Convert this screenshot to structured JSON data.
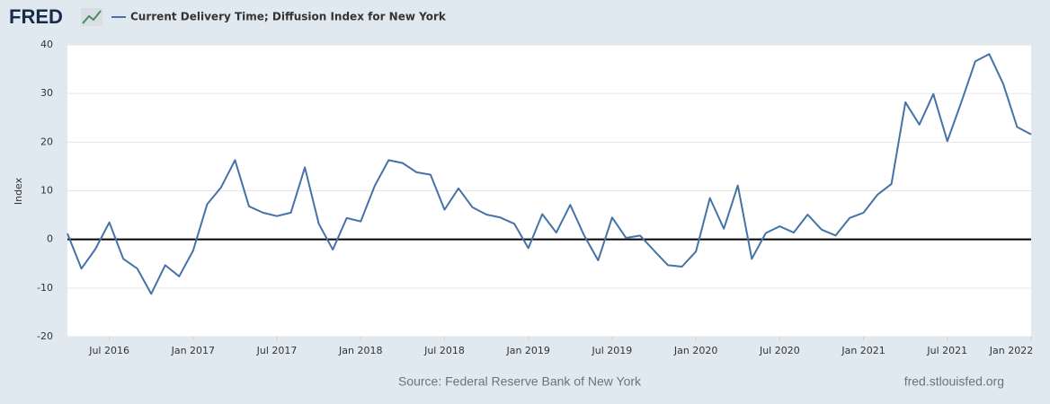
{
  "logo": "FRED",
  "chart_data": {
    "type": "line",
    "title": "Current Delivery Time; Diffusion Index for New York",
    "ylabel": "Index",
    "source": "Source: Federal Reserve Bank of New York",
    "site": "fred.stlouisfed.org",
    "x": [
      "2016-04",
      "2016-05",
      "2016-06",
      "2016-07",
      "2016-08",
      "2016-09",
      "2016-10",
      "2016-11",
      "2016-12",
      "2017-01",
      "2017-02",
      "2017-03",
      "2017-04",
      "2017-05",
      "2017-06",
      "2017-07",
      "2017-08",
      "2017-09",
      "2017-10",
      "2017-11",
      "2017-12",
      "2018-01",
      "2018-02",
      "2018-03",
      "2018-04",
      "2018-05",
      "2018-06",
      "2018-07",
      "2018-08",
      "2018-09",
      "2018-10",
      "2018-11",
      "2018-12",
      "2019-01",
      "2019-02",
      "2019-03",
      "2019-04",
      "2019-05",
      "2019-06",
      "2019-07",
      "2019-08",
      "2019-09",
      "2019-10",
      "2019-11",
      "2019-12",
      "2020-01",
      "2020-02",
      "2020-03",
      "2020-04",
      "2020-05",
      "2020-06",
      "2020-07",
      "2020-08",
      "2020-09",
      "2020-10",
      "2020-11",
      "2020-12",
      "2021-01",
      "2021-02",
      "2021-03",
      "2021-04",
      "2021-05",
      "2021-06",
      "2021-07",
      "2021-08",
      "2021-09",
      "2021-10",
      "2021-11",
      "2021-12",
      "2022-01"
    ],
    "series": [
      {
        "name": "Current Delivery Time; Diffusion Index for New York",
        "color": "#4572a7",
        "values": [
          1.2,
          -6,
          -2,
          3.5,
          -4,
          -6,
          -11.2,
          -5.3,
          -7.6,
          -2.3,
          7.2,
          10.7,
          16.3,
          6.8,
          5.5,
          4.8,
          5.5,
          14.8,
          3.2,
          -2.1,
          4.4,
          3.7,
          11,
          16.3,
          15.7,
          13.8,
          13.3,
          6.1,
          10.5,
          6.6,
          5.1,
          4.5,
          3.2,
          -1.8,
          5.2,
          1.4,
          7.1,
          0.8,
          -4.3,
          4.5,
          0.3,
          0.8,
          -2.3,
          -5.3,
          -5.6,
          -2.5,
          8.5,
          2.2,
          11.1,
          -4,
          1.3,
          2.7,
          1.4,
          5.1,
          2,
          0.8,
          4.4,
          5.5,
          9.2,
          11.4,
          28.2,
          23.6,
          29.9,
          20.2,
          28.2,
          36.6,
          38.1,
          32,
          23.1,
          21.6
        ]
      }
    ],
    "xlim": [
      "2016-04",
      "2022-01"
    ],
    "xticks": [
      {
        "value": "2016-07",
        "label": "Jul 2016"
      },
      {
        "value": "2017-01",
        "label": "Jan 2017"
      },
      {
        "value": "2017-07",
        "label": "Jul 2017"
      },
      {
        "value": "2018-01",
        "label": "Jan 2018"
      },
      {
        "value": "2018-07",
        "label": "Jul 2018"
      },
      {
        "value": "2019-01",
        "label": "Jan 2019"
      },
      {
        "value": "2019-07",
        "label": "Jul 2019"
      },
      {
        "value": "2020-01",
        "label": "Jan 2020"
      },
      {
        "value": "2020-07",
        "label": "Jul 2020"
      },
      {
        "value": "2021-01",
        "label": "Jan 2021"
      },
      {
        "value": "2021-07",
        "label": "Jul 2021"
      },
      {
        "value": "2022-01",
        "label": "Jan 2022"
      }
    ],
    "ylim": [
      -20,
      40
    ],
    "yticks": [
      -20,
      -10,
      0,
      10,
      20,
      30,
      40
    ],
    "grid": true
  }
}
